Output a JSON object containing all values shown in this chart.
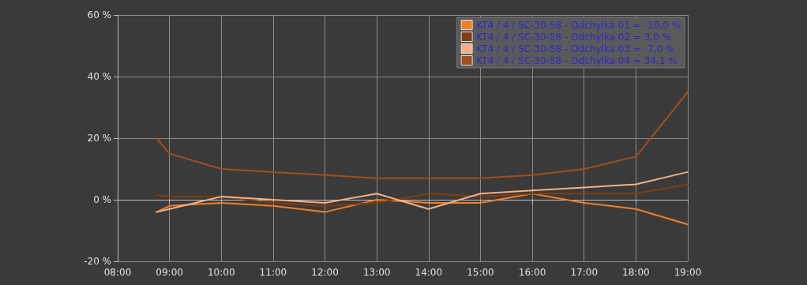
{
  "chart_data": {
    "type": "line",
    "xlim": [
      8,
      19
    ],
    "ylim": [
      -20,
      60
    ],
    "xticks": [
      {
        "value": 8,
        "label": "08:00"
      },
      {
        "value": 9,
        "label": "09:00"
      },
      {
        "value": 10,
        "label": "10:00"
      },
      {
        "value": 11,
        "label": "11:00"
      },
      {
        "value": 12,
        "label": "12:00"
      },
      {
        "value": 13,
        "label": "13:00"
      },
      {
        "value": 14,
        "label": "14:00"
      },
      {
        "value": 15,
        "label": "15:00"
      },
      {
        "value": 16,
        "label": "16:00"
      },
      {
        "value": 17,
        "label": "17:00"
      },
      {
        "value": 18,
        "label": "18:00"
      },
      {
        "value": 19,
        "label": "19:00"
      }
    ],
    "yticks": [
      {
        "value": -20,
        "label": "-20 %"
      },
      {
        "value": 0,
        "label": "0 %"
      },
      {
        "value": 20,
        "label": "20 %"
      },
      {
        "value": 40,
        "label": "40 %"
      },
      {
        "value": 60,
        "label": "60 %"
      }
    ],
    "grid": true,
    "legend": "top right",
    "marker": "none",
    "line_style": "solid",
    "x": [
      8.75,
      9,
      10,
      11,
      12,
      13,
      14,
      15,
      16,
      17,
      18,
      19
    ],
    "series": [
      {
        "name": "KT4 / 4 / SC-30-58 - Odchylka 01 = -10,0 %",
        "color": "#f07f28",
        "values": [
          -4,
          -2,
          -1,
          -2,
          -4,
          0,
          -1,
          -1,
          2,
          -1,
          -3,
          -8
        ]
      },
      {
        "name": "KT4 / 4 / SC-30-58 - Odchylka 02 = 3,0 %",
        "color": "#7f3f10",
        "values": [
          1.5,
          1,
          1,
          -1,
          -2,
          -1,
          2,
          1,
          2,
          2,
          2,
          5
        ]
      },
      {
        "name": "KT4 / 4 / SC-30-58 - Odchylka 03 = -7,0 %",
        "color": "#f4b080",
        "values": [
          -4,
          -3,
          1,
          0,
          -1,
          2,
          -3,
          2,
          3,
          4,
          5,
          9
        ]
      },
      {
        "name": "KT4 / 4 / SC-30-58 - Odchylka 04 = 34,1 %",
        "color": "#a0501c",
        "values": [
          20,
          15,
          10,
          9,
          8,
          7,
          7,
          7,
          8,
          10,
          14,
          35
        ]
      }
    ]
  }
}
